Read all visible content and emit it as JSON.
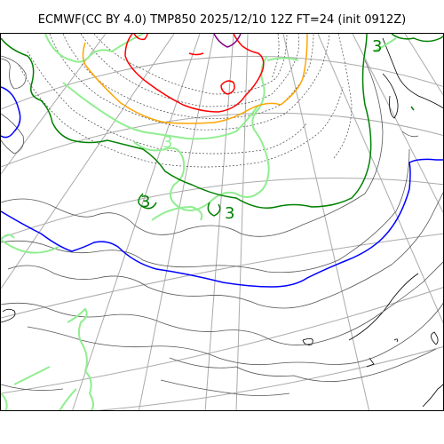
{
  "title": "ECMWF(CC BY 4.0) TMP850 2025/12/10 12Z FT=24 (init 0912Z)",
  "map": {
    "variable": "TMP850",
    "projection": "polar-stereographic",
    "graticule": true,
    "colors": {
      "coastline": "#000000",
      "graticule": "#aaaaaa",
      "isotherm_dotted": "#444444",
      "isotherm_thin": "#555555",
      "isotherm_green_dark": "#008000",
      "isotherm_green_light": "#90ee90",
      "isotherm_blue": "#0000ff",
      "isotherm_red": "#ff0000",
      "isotherm_orange": "#ffa500",
      "isotherm_purple": "#800080"
    },
    "contour_labels": [
      {
        "text": "3",
        "color": "#008000"
      },
      {
        "text": "3",
        "color": "#008000"
      },
      {
        "text": "3",
        "color": "#008000"
      },
      {
        "text": "3",
        "color": "#008000"
      }
    ]
  }
}
